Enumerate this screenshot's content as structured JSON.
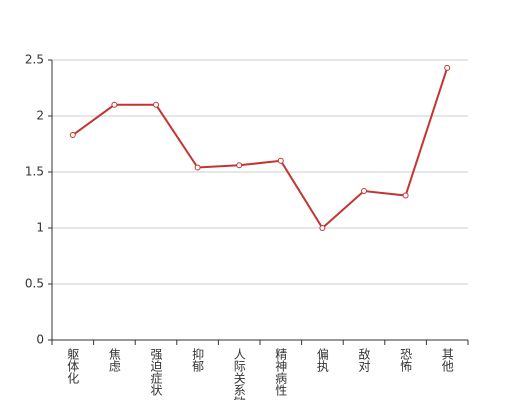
{
  "chart_data": {
    "type": "line",
    "categories": [
      "躯体化",
      "焦虑",
      "强迫症状",
      "抑郁",
      "人际关系敏感",
      "精神病性",
      "偏执",
      "敌对",
      "恐怖",
      "其他"
    ],
    "series": [
      {
        "color": "#c23531",
        "values": [
          1.83,
          2.1,
          2.1,
          1.54,
          1.56,
          1.6,
          1.0,
          1.33,
          1.29,
          2.43
        ]
      }
    ],
    "ylim": [
      0,
      2.5
    ],
    "yticks": [
      0,
      0.5,
      1,
      1.5,
      2,
      2.5
    ],
    "grid": true
  }
}
